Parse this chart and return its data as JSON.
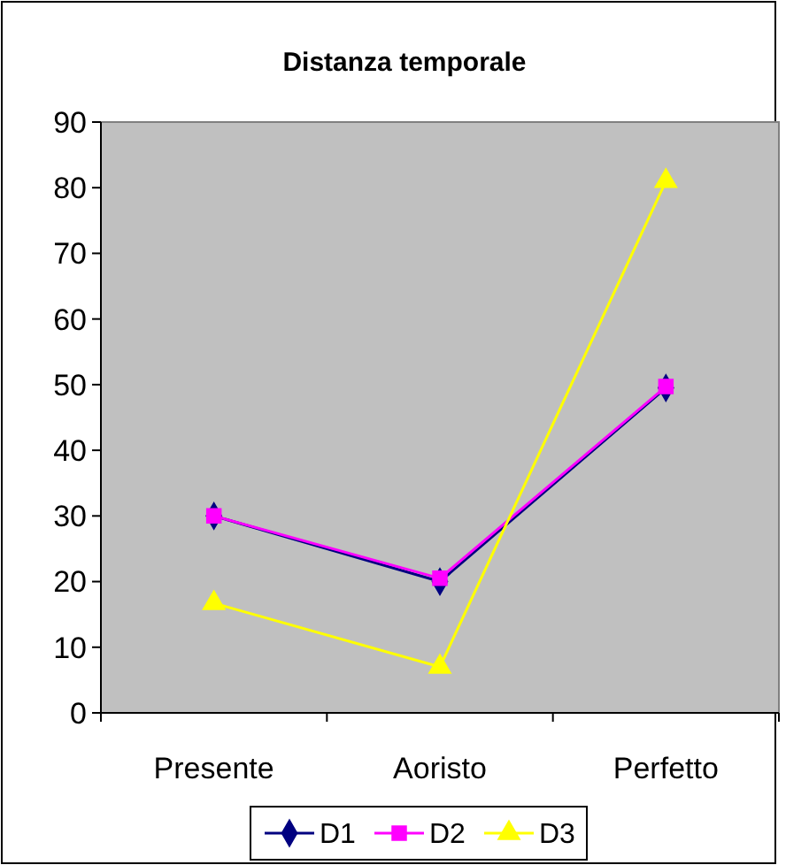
{
  "chart_data": {
    "type": "line",
    "title": "Distanza temporale",
    "categories": [
      "Presente",
      "Aoristo",
      "Perfetto"
    ],
    "series": [
      {
        "name": "D1",
        "color": "#000080",
        "marker": "diamond",
        "values": [
          30,
          20,
          49.5
        ]
      },
      {
        "name": "D2",
        "color": "#ff00ff",
        "marker": "square",
        "values": [
          30,
          20.5,
          49.7
        ]
      },
      {
        "name": "D3",
        "color": "#ffff00",
        "marker": "triangle",
        "values": [
          16.7,
          7,
          81
        ]
      }
    ],
    "ylim": [
      0,
      90
    ],
    "yticks": [
      0,
      10,
      20,
      30,
      40,
      50,
      60,
      70,
      80,
      90
    ],
    "grid": false,
    "legend": "bottom"
  }
}
